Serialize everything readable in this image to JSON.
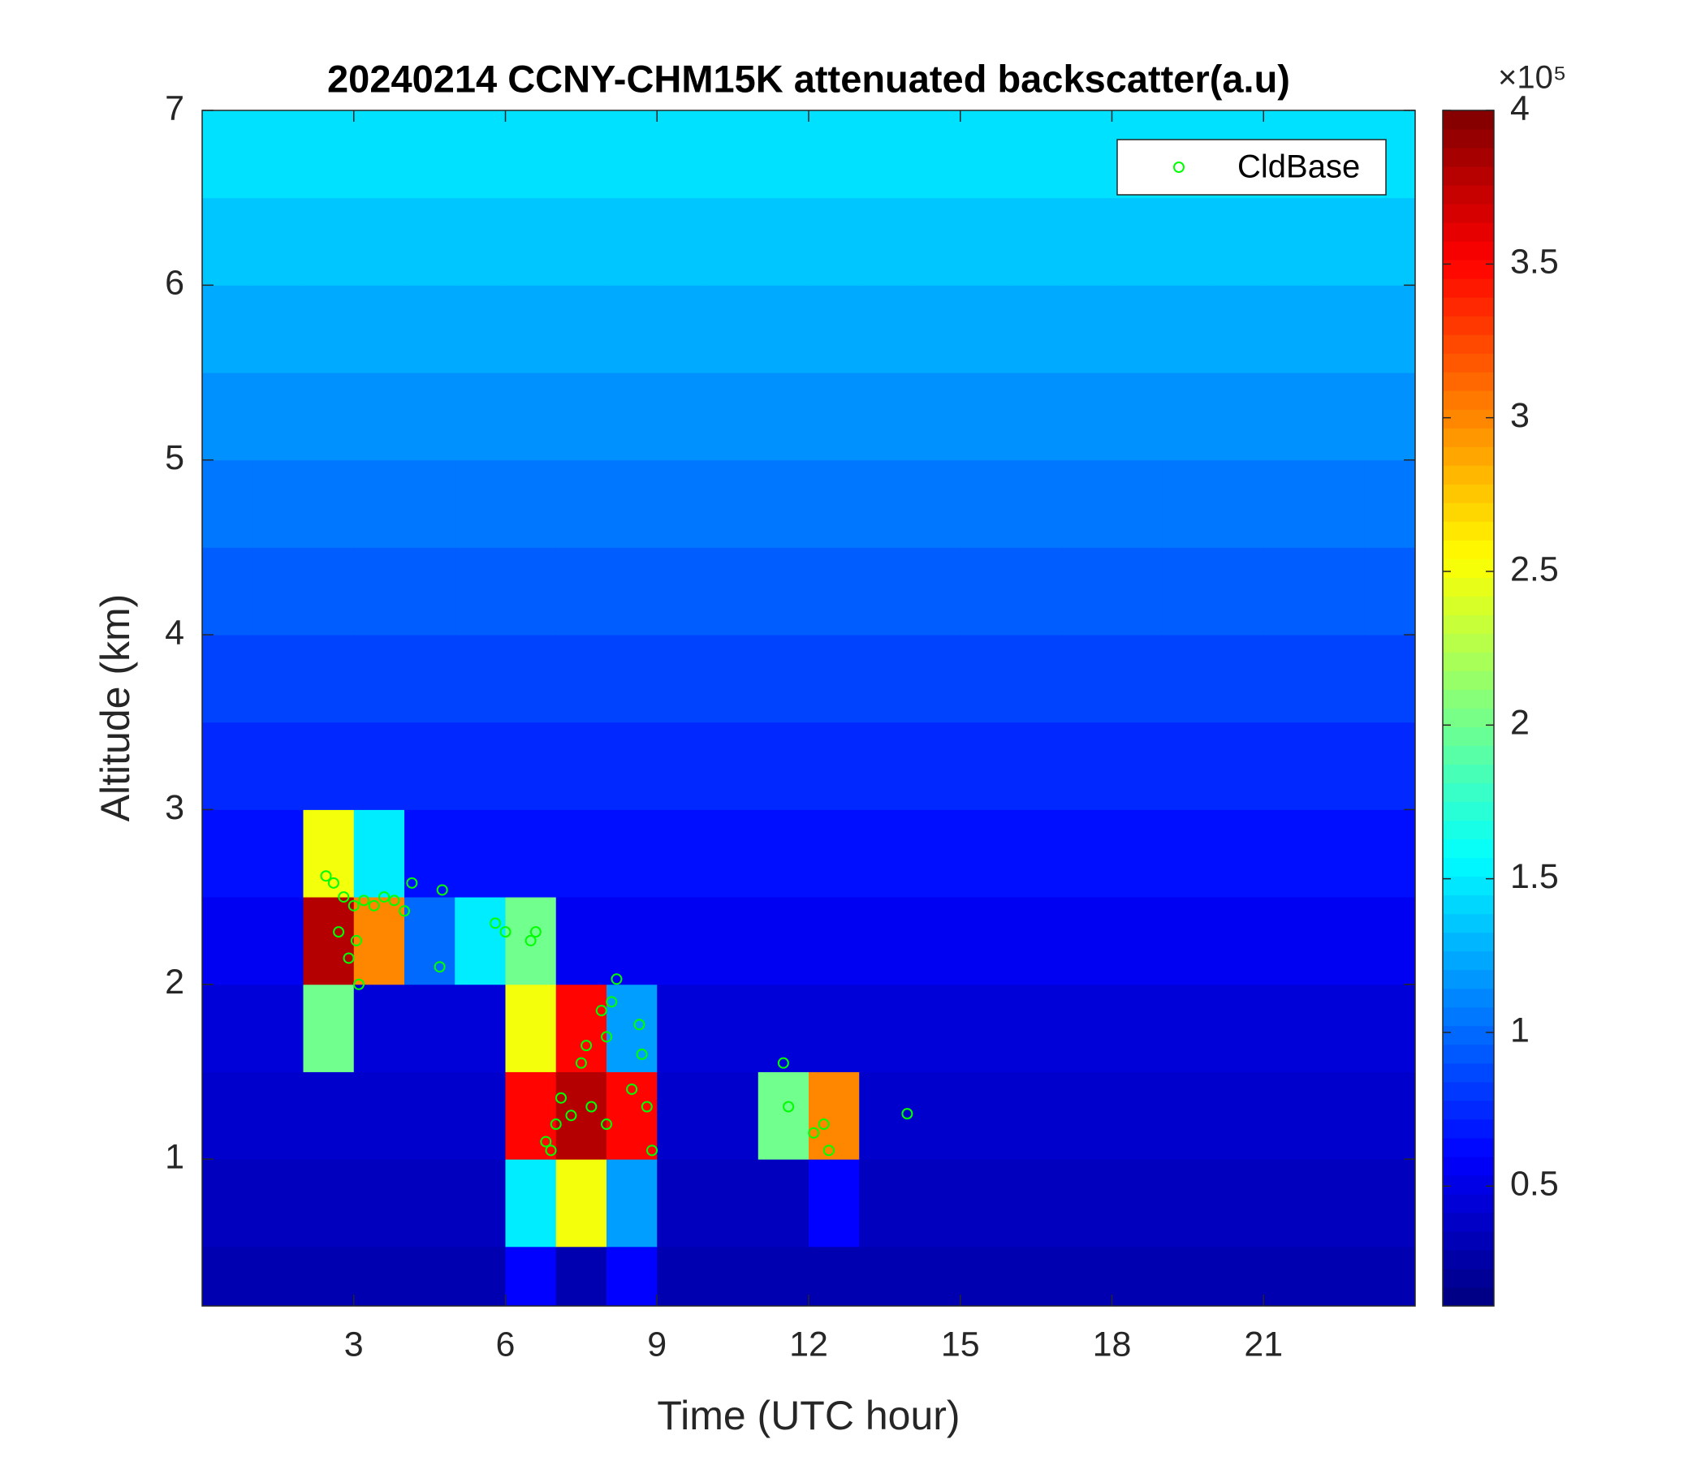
{
  "chart_data": {
    "type": "heatmap",
    "title": "20240214 CCNY-CHM15K attenuated backscatter(a.u)",
    "x_label": "Time (UTC hour)",
    "y_label": "Altitude (km)",
    "xlim": [
      0,
      24
    ],
    "ylim": [
      0.16,
      7
    ],
    "xticks": [
      3,
      6,
      9,
      12,
      15,
      18,
      21
    ],
    "yticks": [
      1,
      2,
      3,
      4,
      5,
      6,
      7
    ],
    "colormap": "jet",
    "clim": [
      11000,
      400000
    ],
    "colorbar_ticks": [
      {
        "value": 50000,
        "label": "0.5"
      },
      {
        "value": 100000,
        "label": "1"
      },
      {
        "value": 150000,
        "label": "1.5"
      },
      {
        "value": 200000,
        "label": "2"
      },
      {
        "value": 250000,
        "label": "2.5"
      },
      {
        "value": 300000,
        "label": "3"
      },
      {
        "value": 350000,
        "label": "3.5"
      },
      {
        "value": 400000,
        "label": "4"
      }
    ],
    "colorbar_multiplier": "×10⁵",
    "x_bins": [
      0,
      1,
      2,
      3,
      4,
      5,
      6,
      7,
      8,
      9,
      10,
      11,
      12,
      13,
      14,
      15,
      16,
      17,
      18,
      19,
      20,
      21,
      22,
      23,
      24
    ],
    "y_bins": [
      0.16,
      0.5,
      1,
      1.5,
      2,
      2.5,
      3,
      3.5,
      4,
      4.5,
      5,
      5.5,
      6,
      6.5,
      7
    ],
    "z": [
      [
        30000,
        30000,
        30000,
        30000,
        30000,
        30000,
        60000,
        30000,
        60000,
        30000,
        30000,
        30000,
        30000,
        30000,
        30000,
        30000,
        30000,
        30000,
        30000,
        30000,
        30000,
        30000,
        30000,
        30000
      ],
      [
        35000,
        35000,
        35000,
        35000,
        35000,
        35000,
        150000,
        250000,
        120000,
        35000,
        35000,
        35000,
        60000,
        35000,
        35000,
        35000,
        35000,
        35000,
        35000,
        35000,
        35000,
        35000,
        35000,
        35000
      ],
      [
        40000,
        40000,
        40000,
        40000,
        40000,
        40000,
        350000,
        380000,
        350000,
        40000,
        40000,
        200000,
        300000,
        40000,
        40000,
        40000,
        40000,
        40000,
        40000,
        40000,
        40000,
        40000,
        40000,
        40000
      ],
      [
        45000,
        45000,
        200000,
        45000,
        45000,
        45000,
        250000,
        350000,
        120000,
        45000,
        45000,
        45000,
        45000,
        45000,
        45000,
        45000,
        45000,
        45000,
        45000,
        45000,
        45000,
        45000,
        45000,
        45000
      ],
      [
        55000,
        55000,
        380000,
        300000,
        100000,
        150000,
        200000,
        55000,
        55000,
        55000,
        55000,
        55000,
        55000,
        55000,
        55000,
        55000,
        55000,
        55000,
        55000,
        55000,
        55000,
        55000,
        55000,
        55000
      ],
      [
        65000,
        65000,
        250000,
        150000,
        65000,
        65000,
        65000,
        65000,
        65000,
        65000,
        65000,
        65000,
        65000,
        65000,
        65000,
        65000,
        65000,
        65000,
        65000,
        65000,
        65000,
        65000,
        65000,
        65000
      ],
      [
        75000,
        75000,
        75000,
        75000,
        75000,
        75000,
        75000,
        75000,
        75000,
        75000,
        75000,
        75000,
        75000,
        75000,
        75000,
        75000,
        75000,
        75000,
        75000,
        75000,
        75000,
        75000,
        75000,
        75000
      ],
      [
        85000,
        85000,
        85000,
        85000,
        85000,
        85000,
        85000,
        85000,
        85000,
        85000,
        85000,
        85000,
        85000,
        85000,
        85000,
        85000,
        85000,
        85000,
        85000,
        85000,
        85000,
        85000,
        85000,
        85000
      ],
      [
        95000,
        95000,
        95000,
        95000,
        95000,
        95000,
        95000,
        95000,
        95000,
        95000,
        95000,
        95000,
        95000,
        95000,
        95000,
        95000,
        95000,
        95000,
        95000,
        95000,
        95000,
        95000,
        95000,
        95000
      ],
      [
        105000,
        105000,
        105000,
        105000,
        105000,
        105000,
        105000,
        105000,
        105000,
        105000,
        105000,
        105000,
        105000,
        105000,
        105000,
        105000,
        105000,
        105000,
        105000,
        105000,
        105000,
        105000,
        105000,
        105000
      ],
      [
        115000,
        115000,
        115000,
        115000,
        115000,
        115000,
        115000,
        115000,
        115000,
        115000,
        115000,
        115000,
        115000,
        115000,
        115000,
        115000,
        115000,
        115000,
        115000,
        115000,
        115000,
        115000,
        115000,
        115000
      ],
      [
        125000,
        125000,
        125000,
        125000,
        125000,
        125000,
        125000,
        125000,
        125000,
        125000,
        125000,
        125000,
        125000,
        125000,
        125000,
        125000,
        125000,
        125000,
        125000,
        125000,
        125000,
        125000,
        125000,
        125000
      ],
      [
        135000,
        135000,
        135000,
        135000,
        135000,
        135000,
        135000,
        135000,
        135000,
        135000,
        135000,
        135000,
        135000,
        135000,
        135000,
        135000,
        135000,
        135000,
        135000,
        135000,
        135000,
        135000,
        135000,
        135000
      ],
      [
        145000,
        145000,
        145000,
        145000,
        145000,
        145000,
        145000,
        145000,
        145000,
        145000,
        145000,
        145000,
        145000,
        145000,
        145000,
        145000,
        145000,
        145000,
        145000,
        145000,
        145000,
        145000,
        145000,
        145000
      ]
    ],
    "series": [
      {
        "name": "CldBase",
        "color": "#00ff00",
        "x": [
          2.45,
          2.6,
          2.8,
          3.0,
          3.2,
          3.4,
          3.6,
          3.8,
          4.0,
          4.15,
          3.05,
          2.9,
          3.1,
          2.7,
          4.75,
          4.7,
          5.8,
          6.0,
          6.5,
          6.6,
          6.8,
          6.9,
          7.0,
          7.1,
          7.3,
          7.5,
          7.6,
          7.7,
          7.9,
          8.0,
          8.1,
          8.2,
          8.0,
          8.5,
          8.7,
          8.8,
          8.9,
          8.65,
          11.5,
          11.6,
          12.1,
          12.3,
          12.4,
          13.95
        ],
        "values": [
          2.62,
          2.58,
          2.5,
          2.45,
          2.48,
          2.45,
          2.5,
          2.48,
          2.42,
          2.58,
          2.25,
          2.15,
          2.0,
          2.3,
          2.54,
          2.1,
          2.35,
          2.3,
          2.25,
          2.3,
          1.1,
          1.05,
          1.2,
          1.35,
          1.25,
          1.55,
          1.65,
          1.3,
          1.85,
          1.7,
          1.9,
          2.03,
          1.2,
          1.4,
          1.6,
          1.3,
          1.05,
          1.77,
          1.55,
          1.3,
          1.15,
          1.2,
          1.05,
          1.26
        ]
      }
    ],
    "legend": "upper right"
  }
}
